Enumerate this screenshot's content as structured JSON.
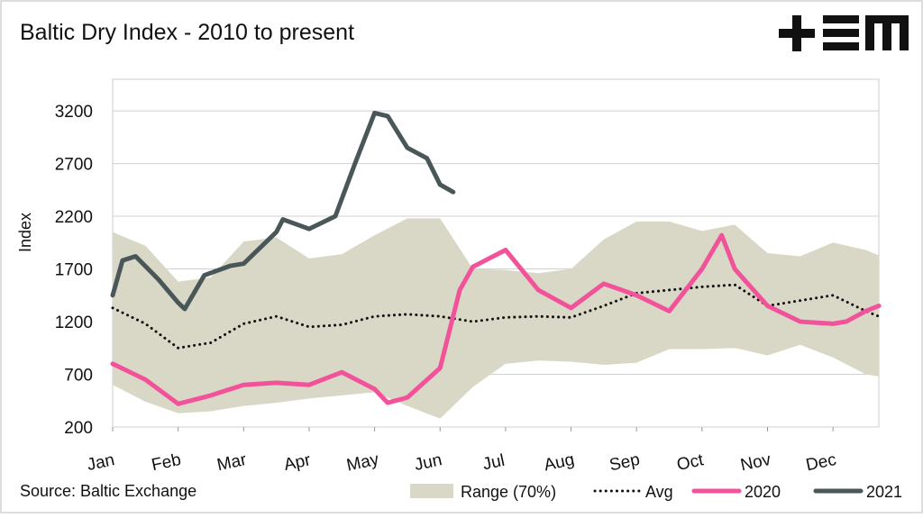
{
  "chart_data": {
    "type": "line",
    "title": "Baltic Dry Index - 2010 to present",
    "y_label": "Index",
    "source": "Source: Baltic Exchange",
    "xlim": [
      0,
      11.7
    ],
    "xticks": [
      {
        "value": 0,
        "label": "Jan"
      },
      {
        "value": 1,
        "label": "Feb"
      },
      {
        "value": 2,
        "label": "Mar"
      },
      {
        "value": 3,
        "label": "Apr"
      },
      {
        "value": 4,
        "label": "May"
      },
      {
        "value": 5,
        "label": "Jun"
      },
      {
        "value": 6,
        "label": "Jul"
      },
      {
        "value": 7,
        "label": "Aug"
      },
      {
        "value": 8,
        "label": "Sep"
      },
      {
        "value": 9,
        "label": "Oct"
      },
      {
        "value": 10,
        "label": "Nov"
      },
      {
        "value": 11,
        "label": "Dec"
      }
    ],
    "ylim": [
      200,
      3500
    ],
    "yticks": [
      200,
      700,
      1200,
      1700,
      2200,
      2700,
      3200
    ],
    "grid": true,
    "series": [
      {
        "name": "Range (70%)",
        "kind": "band",
        "color": "#d9d8c6",
        "x": [
          0,
          0.5,
          1,
          1.5,
          2,
          2.5,
          3,
          3.5,
          4,
          4.5,
          5,
          5.5,
          6,
          6.5,
          7,
          7.5,
          8,
          8.5,
          9,
          9.5,
          10,
          10.5,
          11,
          11.5,
          11.7
        ],
        "upper": [
          2050,
          1920,
          1580,
          1620,
          1960,
          2000,
          1800,
          1840,
          2020,
          2180,
          2180,
          1700,
          1690,
          1660,
          1700,
          1980,
          2150,
          2150,
          2060,
          2120,
          1850,
          1820,
          1950,
          1880,
          1830
        ],
        "lower": [
          600,
          440,
          330,
          350,
          400,
          430,
          470,
          500,
          530,
          400,
          280,
          580,
          800,
          830,
          820,
          790,
          810,
          940,
          940,
          950,
          880,
          980,
          860,
          700,
          680
        ]
      },
      {
        "name": "Avg",
        "kind": "dotted",
        "color": "#111111",
        "x": [
          0,
          0.5,
          1,
          1.5,
          2,
          2.5,
          3,
          3.5,
          4,
          4.5,
          5,
          5.5,
          6,
          6.5,
          7,
          7.5,
          8,
          8.5,
          9,
          9.5,
          10,
          10.5,
          11,
          11.5,
          11.7
        ],
        "values": [
          1330,
          1180,
          950,
          1000,
          1180,
          1250,
          1150,
          1170,
          1250,
          1270,
          1250,
          1200,
          1240,
          1250,
          1240,
          1350,
          1470,
          1500,
          1530,
          1550,
          1350,
          1400,
          1450,
          1300,
          1250
        ]
      },
      {
        "name": "2020",
        "kind": "line",
        "color": "#f2529a",
        "x": [
          0,
          0.5,
          1,
          1.5,
          2,
          2.5,
          3,
          3.5,
          4,
          4.2,
          4.5,
          5,
          5.3,
          5.5,
          6,
          6.5,
          7,
          7.5,
          8,
          8.5,
          9,
          9.3,
          9.5,
          10,
          10.5,
          11,
          11.2,
          11.5,
          11.7
        ],
        "values": [
          800,
          650,
          420,
          500,
          600,
          620,
          600,
          720,
          560,
          430,
          480,
          760,
          1500,
          1720,
          1880,
          1500,
          1330,
          1560,
          1450,
          1300,
          1700,
          2020,
          1700,
          1350,
          1200,
          1180,
          1200,
          1300,
          1350
        ]
      },
      {
        "name": "2021",
        "kind": "line",
        "color": "#4a5759",
        "x": [
          0,
          0.15,
          0.35,
          0.7,
          1,
          1.1,
          1.4,
          1.8,
          2,
          2.5,
          2.6,
          3,
          3.4,
          3.7,
          4,
          4.2,
          4.5,
          4.8,
          5,
          5.2
        ],
        "values": [
          1450,
          1780,
          1820,
          1600,
          1380,
          1320,
          1640,
          1730,
          1750,
          2050,
          2170,
          2080,
          2200,
          2700,
          3180,
          3150,
          2850,
          2750,
          2500,
          2430
        ]
      }
    ]
  }
}
